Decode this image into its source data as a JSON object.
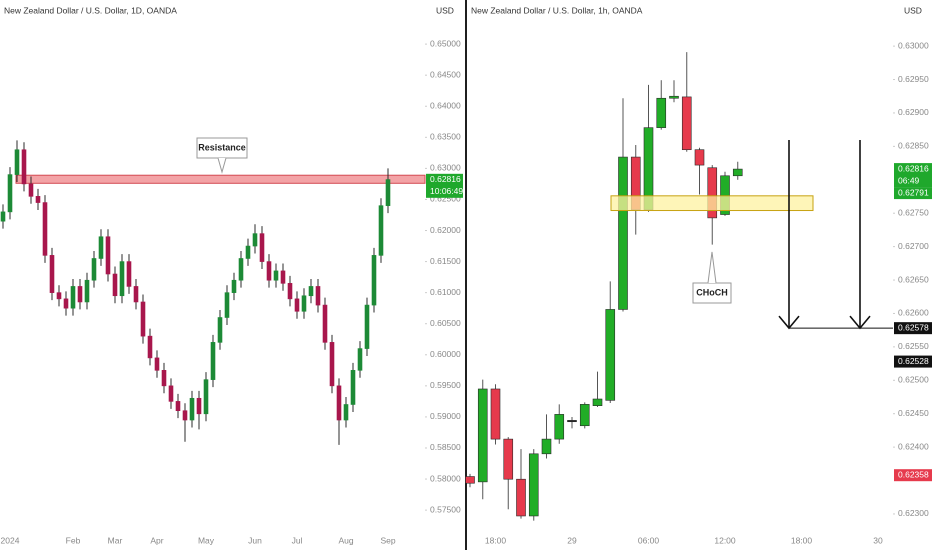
{
  "chart_data": [
    {
      "type": "candlestick",
      "title": "New Zealand Dollar / U.S. Dollar, 1D, OANDA",
      "currency": "USD",
      "categories": [
        null,
        "2024",
        null,
        null,
        null,
        null,
        null,
        null,
        null,
        null,
        "Feb",
        null,
        null,
        null,
        null,
        null,
        "Mar",
        null,
        null,
        null,
        null,
        null,
        "Apr",
        null,
        null,
        null,
        null,
        null,
        null,
        "May",
        null,
        null,
        null,
        null,
        null,
        null,
        "Jun",
        null,
        null,
        null,
        null,
        null,
        "Jul",
        null,
        null,
        null,
        null,
        null,
        null,
        "Aug",
        null,
        null,
        null,
        null,
        null,
        "Sep"
      ],
      "open": [
        0.6215,
        0.623,
        0.629,
        0.633,
        0.6275,
        0.6255,
        0.6245,
        0.616,
        0.61,
        0.609,
        0.6075,
        0.611,
        0.6085,
        0.612,
        0.6155,
        0.619,
        0.613,
        0.6095,
        0.615,
        0.611,
        0.6085,
        0.603,
        0.5995,
        0.5975,
        0.595,
        0.5925,
        0.591,
        0.5895,
        0.593,
        0.5905,
        0.596,
        0.602,
        0.606,
        0.61,
        0.612,
        0.6155,
        0.6175,
        0.6195,
        0.615,
        0.612,
        0.6135,
        0.6115,
        0.609,
        0.607,
        0.6095,
        0.611,
        0.608,
        0.602,
        0.595,
        0.5895,
        0.592,
        0.5975,
        0.601,
        0.608,
        0.616,
        0.624
      ],
      "high": [
        0.6242,
        0.6302,
        0.6345,
        0.6342,
        0.6287,
        0.6267,
        0.6257,
        0.6172,
        0.6112,
        0.6102,
        0.6122,
        0.6122,
        0.6132,
        0.6167,
        0.6202,
        0.6202,
        0.6142,
        0.6162,
        0.6162,
        0.6122,
        0.6097,
        0.6042,
        0.6007,
        0.5987,
        0.5962,
        0.5937,
        0.5922,
        0.5942,
        0.5942,
        0.5972,
        0.6032,
        0.6072,
        0.6112,
        0.6132,
        0.6167,
        0.6187,
        0.621,
        0.6207,
        0.6162,
        0.6147,
        0.6147,
        0.6127,
        0.6102,
        0.6107,
        0.6122,
        0.6122,
        0.6092,
        0.6032,
        0.5962,
        0.5932,
        0.5987,
        0.6022,
        0.6092,
        0.6172,
        0.6252,
        0.63
      ],
      "low": [
        0.6203,
        0.6218,
        0.6278,
        0.6263,
        0.6243,
        0.6233,
        0.6148,
        0.6088,
        0.6078,
        0.6063,
        0.6063,
        0.6073,
        0.6073,
        0.6108,
        0.6143,
        0.6118,
        0.6083,
        0.6083,
        0.6098,
        0.6073,
        0.6018,
        0.5983,
        0.5963,
        0.5938,
        0.5913,
        0.5898,
        0.586,
        0.5883,
        0.588,
        0.5893,
        0.5948,
        0.6008,
        0.6048,
        0.6088,
        0.6108,
        0.6143,
        0.6163,
        0.6138,
        0.6108,
        0.6108,
        0.6103,
        0.6078,
        0.6058,
        0.6058,
        0.6083,
        0.6068,
        0.6008,
        0.5938,
        0.5855,
        0.5883,
        0.5908,
        0.5963,
        0.5998,
        0.6068,
        0.6148,
        0.6228
      ],
      "close": [
        0.623,
        0.629,
        0.633,
        0.6275,
        0.6255,
        0.6245,
        0.616,
        0.61,
        0.609,
        0.6075,
        0.611,
        0.6085,
        0.612,
        0.6155,
        0.619,
        0.613,
        0.6095,
        0.615,
        0.611,
        0.6085,
        0.603,
        0.5995,
        0.5975,
        0.595,
        0.5925,
        0.591,
        0.5895,
        0.593,
        0.5905,
        0.596,
        0.602,
        0.606,
        0.61,
        0.612,
        0.6155,
        0.6175,
        0.6195,
        0.615,
        0.612,
        0.6135,
        0.6115,
        0.609,
        0.607,
        0.6095,
        0.611,
        0.608,
        0.602,
        0.595,
        0.5895,
        0.592,
        0.5975,
        0.601,
        0.608,
        0.616,
        0.624,
        0.6282
      ],
      "up_color": "#1d8a36",
      "down_color": "#a8174c",
      "ylim": [
        0.5718,
        0.6571
      ],
      "yticks": [
        {
          "value": 0.65,
          "label": "0.65000"
        },
        {
          "value": 0.645,
          "label": "0.64500"
        },
        {
          "value": 0.64,
          "label": "0.64000"
        },
        {
          "value": 0.635,
          "label": "0.63500"
        },
        {
          "value": 0.63,
          "label": "0.63000"
        },
        {
          "value": 0.625,
          "label": "0.62500"
        },
        {
          "value": 0.62,
          "label": "0.62000"
        },
        {
          "value": 0.615,
          "label": "0.61500"
        },
        {
          "value": 0.61,
          "label": "0.61000"
        },
        {
          "value": 0.605,
          "label": "0.60500"
        },
        {
          "value": 0.6,
          "label": "0.60000"
        },
        {
          "value": 0.595,
          "label": "0.59500"
        },
        {
          "value": 0.59,
          "label": "0.59000"
        },
        {
          "value": 0.585,
          "label": "0.58500"
        },
        {
          "value": 0.58,
          "label": "0.58000"
        },
        {
          "value": 0.575,
          "label": "0.57500"
        }
      ],
      "zone": {
        "low": 0.6276,
        "high": 0.6289,
        "fill": "#f3a3a6",
        "stroke": "#d34a52"
      },
      "annotation": "Resistance",
      "price_tags": [
        {
          "value": 0.62816,
          "countdown": "10:06:49",
          "color": "#1fa82c"
        }
      ]
    },
    {
      "type": "candlestick",
      "title": "New Zealand Dollar / U.S. Dollar, 1h, OANDA",
      "currency": "USD",
      "categories": [
        null,
        null,
        "18:00",
        null,
        null,
        null,
        null,
        null,
        "29",
        null,
        null,
        null,
        null,
        null,
        "06:00",
        null,
        null,
        null,
        null,
        null,
        "12:00",
        null,
        null,
        null,
        null,
        null,
        "18:00",
        null,
        null,
        null,
        null,
        null,
        "30"
      ],
      "open": [
        0.62356,
        0.62348,
        0.62487,
        0.62412,
        0.62352,
        0.62297,
        0.6239,
        0.62412,
        0.6244,
        0.62432,
        0.62462,
        0.6247,
        0.62606,
        0.62834,
        0.62755,
        0.62878,
        0.62922,
        0.62924,
        0.62845,
        0.62818,
        0.62748,
        0.62806,
        null,
        null,
        null,
        null,
        null,
        null,
        null,
        null,
        null,
        null,
        null
      ],
      "high": [
        0.6236,
        0.62501,
        0.62494,
        0.62415,
        0.62397,
        0.62397,
        0.62449,
        0.62464,
        0.62445,
        0.62467,
        0.62513,
        0.62648,
        0.62922,
        0.62852,
        0.62942,
        0.62949,
        0.62949,
        0.62991,
        0.62848,
        0.62822,
        0.62812,
        0.62827,
        null,
        null,
        null,
        null,
        null,
        null,
        null,
        null,
        null,
        null,
        null
      ],
      "low": [
        0.6234,
        0.62322,
        0.62404,
        0.62307,
        0.62293,
        0.6229,
        0.62383,
        0.62405,
        0.62428,
        0.62428,
        0.6246,
        0.62466,
        0.62603,
        0.62718,
        0.62752,
        0.62875,
        0.62916,
        0.62842,
        0.62778,
        0.62703,
        0.62746,
        0.628,
        null,
        null,
        null,
        null,
        null,
        null,
        null,
        null,
        null,
        null,
        null
      ],
      "close": [
        0.62346,
        0.62487,
        0.62412,
        0.62352,
        0.62297,
        0.6239,
        0.62412,
        0.62449,
        0.62438,
        0.62464,
        0.62472,
        0.62606,
        0.62834,
        0.62755,
        0.62878,
        0.62922,
        0.62925,
        0.62845,
        0.62822,
        0.62743,
        0.62806,
        0.62816,
        null,
        null,
        null,
        null,
        null,
        null,
        null,
        null,
        null,
        null,
        null
      ],
      "up_color": "#21ad27",
      "down_color": "#e63a4c",
      "ylim": [
        0.62276,
        0.63069
      ],
      "yticks": [
        {
          "value": 0.63,
          "label": "0.63000"
        },
        {
          "value": 0.6295,
          "label": "0.62950"
        },
        {
          "value": 0.629,
          "label": "0.62900"
        },
        {
          "value": 0.6285,
          "label": "0.62850"
        },
        {
          "value": 0.6275,
          "label": "0.62750"
        },
        {
          "value": 0.627,
          "label": "0.62700"
        },
        {
          "value": 0.6265,
          "label": "0.62650"
        },
        {
          "value": 0.626,
          "label": "0.62600"
        },
        {
          "value": 0.6255,
          "label": "0.62550"
        },
        {
          "value": 0.625,
          "label": "0.62500"
        },
        {
          "value": 0.6245,
          "label": "0.62450"
        },
        {
          "value": 0.624,
          "label": "0.62400"
        },
        {
          "value": 0.623,
          "label": "0.62300"
        }
      ],
      "zone": {
        "low": 0.62754,
        "high": 0.62776,
        "fill": "#fdf1a0",
        "stroke": "#c7a210"
      },
      "annotation": "CHoCH",
      "target": 0.62578,
      "price_tags": [
        {
          "value": 0.62816,
          "countdown": "06:49",
          "color": "#1fa82c"
        },
        {
          "value": 0.62791,
          "color": "#1fa82c"
        },
        {
          "value": 0.62578,
          "color": "#111111"
        },
        {
          "value": 0.62528,
          "color": "#111111"
        },
        {
          "value": 0.62358,
          "color": "#e63a4c"
        }
      ]
    }
  ]
}
